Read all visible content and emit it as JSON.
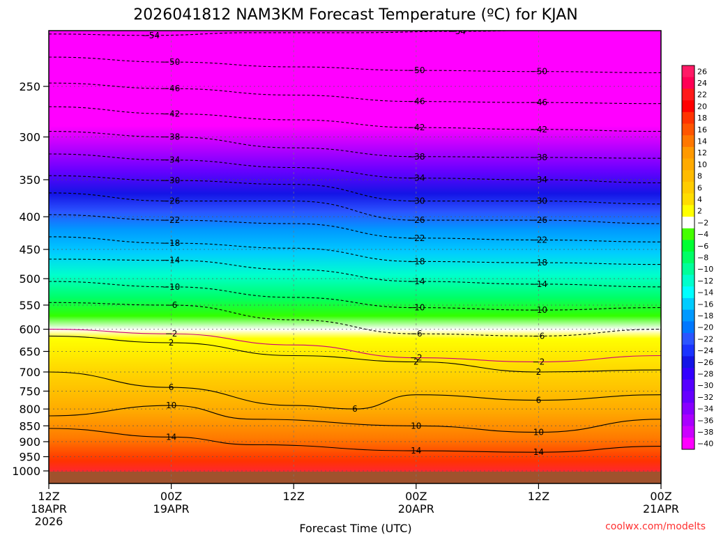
{
  "chart_data": {
    "type": "heatmap",
    "title": "2026041812 NAM3KM Forecast Temperature (ºC) for KJAN",
    "xlabel": "Forecast Time (UTC)",
    "ylabel": "",
    "credit": "coolwx.com/modelts",
    "y_axis": {
      "scale": "pressure (log)",
      "range": [
        1000,
        200
      ],
      "ticks": [
        "250",
        "300",
        "350",
        "400",
        "450",
        "500",
        "550",
        "600",
        "650",
        "700",
        "750",
        "800",
        "850",
        "900",
        "950",
        "1000"
      ]
    },
    "x_axis": {
      "range_hours": [
        0,
        60
      ],
      "ticks": [
        {
          "h": 0,
          "l1": "12Z",
          "l2": "18APR",
          "l3": "2026"
        },
        {
          "h": 12,
          "l1": "00Z",
          "l2": "19APR",
          "l3": ""
        },
        {
          "h": 24,
          "l1": "12Z",
          "l2": "",
          "l3": ""
        },
        {
          "h": 36,
          "l1": "00Z",
          "l2": "20APR",
          "l3": ""
        },
        {
          "h": 48,
          "l1": "12Z",
          "l2": "",
          "l3": ""
        },
        {
          "h": 60,
          "l1": "00Z",
          "l2": "21APR",
          "l3": ""
        }
      ]
    },
    "colorbar_labels": [
      "26",
      "24",
      "22",
      "20",
      "18",
      "16",
      "14",
      "12",
      "10",
      "8",
      "6",
      "4",
      "2",
      "-2",
      "-4",
      "-6",
      "-8",
      "-10",
      "-12",
      "-14",
      "-16",
      "-18",
      "-20",
      "-22",
      "-24",
      "-26",
      "-28",
      "-30",
      "-32",
      "-34",
      "-36",
      "-38",
      "-40"
    ],
    "contours": [
      {
        "t": -54,
        "p": [
          [
            0,
            207
          ],
          [
            10,
            208
          ],
          [
            20,
            206
          ],
          [
            30,
            206
          ],
          [
            40,
            205
          ],
          [
            50,
            204
          ],
          [
            54,
            203
          ],
          [
            57,
            202
          ],
          [
            60,
            204
          ]
        ]
      },
      {
        "t": -50,
        "p": [
          [
            0,
            225
          ],
          [
            12,
            229
          ],
          [
            24,
            233
          ],
          [
            36,
            236
          ],
          [
            48,
            237
          ],
          [
            60,
            238
          ]
        ]
      },
      {
        "t": -46,
        "p": [
          [
            0,
            247
          ],
          [
            12,
            252
          ],
          [
            24,
            258
          ],
          [
            36,
            264
          ],
          [
            48,
            265
          ],
          [
            60,
            266
          ]
        ]
      },
      {
        "t": -42,
        "p": [
          [
            0,
            269
          ],
          [
            12,
            276
          ],
          [
            24,
            282
          ],
          [
            36,
            290
          ],
          [
            48,
            292
          ],
          [
            60,
            294
          ]
        ]
      },
      {
        "t": -38,
        "p": [
          [
            0,
            294
          ],
          [
            12,
            300
          ],
          [
            24,
            312
          ],
          [
            36,
            322
          ],
          [
            48,
            323
          ],
          [
            60,
            324
          ]
        ]
      },
      {
        "t": -34,
        "p": [
          [
            0,
            319
          ],
          [
            12,
            326
          ],
          [
            24,
            335
          ],
          [
            36,
            348
          ],
          [
            48,
            350
          ],
          [
            60,
            354
          ]
        ]
      },
      {
        "t": -30,
        "p": [
          [
            0,
            345
          ],
          [
            12,
            351
          ],
          [
            24,
            356
          ],
          [
            36,
            378
          ],
          [
            48,
            378
          ],
          [
            60,
            382
          ]
        ]
      },
      {
        "t": -26,
        "p": [
          [
            0,
            367
          ],
          [
            12,
            378
          ],
          [
            24,
            378
          ],
          [
            36,
            405
          ],
          [
            48,
            405
          ],
          [
            60,
            410
          ]
        ]
      },
      {
        "t": -22,
        "p": [
          [
            0,
            397
          ],
          [
            12,
            405
          ],
          [
            24,
            410
          ],
          [
            36,
            432
          ],
          [
            48,
            435
          ],
          [
            60,
            438
          ]
        ]
      },
      {
        "t": -18,
        "p": [
          [
            0,
            430
          ],
          [
            12,
            440
          ],
          [
            24,
            448
          ],
          [
            36,
            470
          ],
          [
            48,
            472
          ],
          [
            60,
            475
          ]
        ]
      },
      {
        "t": -14,
        "p": [
          [
            0,
            466
          ],
          [
            12,
            468
          ],
          [
            24,
            484
          ],
          [
            36,
            505
          ],
          [
            48,
            510
          ],
          [
            60,
            515
          ]
        ]
      },
      {
        "t": -10,
        "p": [
          [
            0,
            505
          ],
          [
            12,
            515
          ],
          [
            24,
            535
          ],
          [
            36,
            555
          ],
          [
            48,
            560
          ],
          [
            60,
            555
          ]
        ]
      },
      {
        "t": -6,
        "p": [
          [
            0,
            545
          ],
          [
            12,
            550
          ],
          [
            24,
            580
          ],
          [
            36,
            610
          ],
          [
            48,
            615
          ],
          [
            60,
            600
          ]
        ]
      },
      {
        "t": -2,
        "p": [
          [
            0,
            600
          ],
          [
            12,
            610
          ],
          [
            24,
            635
          ],
          [
            36,
            665
          ],
          [
            48,
            675
          ],
          [
            60,
            660
          ]
        ]
      },
      {
        "t": 2,
        "p": [
          [
            0,
            615
          ],
          [
            12,
            630
          ],
          [
            24,
            660
          ],
          [
            36,
            675
          ],
          [
            48,
            700
          ],
          [
            60,
            695
          ]
        ]
      },
      {
        "t": 6,
        "p": [
          [
            0,
            700
          ],
          [
            12,
            740
          ],
          [
            24,
            790
          ],
          [
            30,
            800
          ],
          [
            36,
            760
          ],
          [
            48,
            775
          ],
          [
            60,
            760
          ]
        ]
      },
      {
        "t": 10,
        "p": [
          [
            0,
            820
          ],
          [
            12,
            790
          ],
          [
            20,
            830
          ],
          [
            36,
            850
          ],
          [
            48,
            870
          ],
          [
            60,
            830
          ]
        ]
      },
      {
        "t": 14,
        "p": [
          [
            0,
            858
          ],
          [
            12,
            885
          ],
          [
            20,
            910
          ],
          [
            36,
            930
          ],
          [
            48,
            935
          ],
          [
            60,
            915
          ]
        ]
      }
    ]
  }
}
